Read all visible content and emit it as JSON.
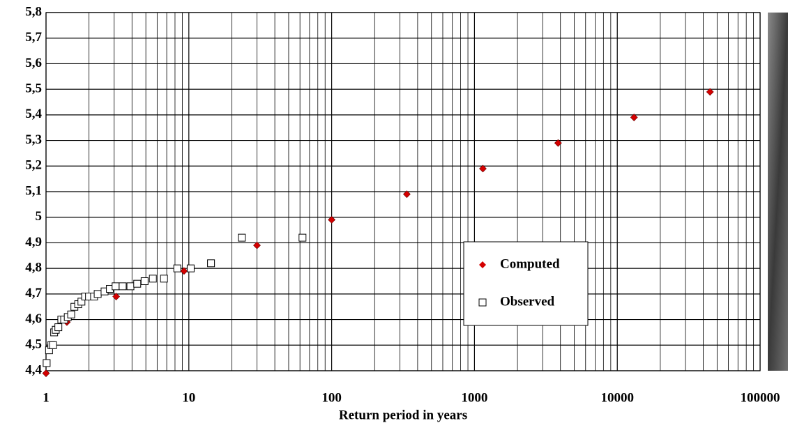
{
  "chart_data": {
    "type": "scatter",
    "x_label": "Return period in years",
    "xscale": "log",
    "xlim": [
      1,
      100000
    ],
    "xticks": [
      1,
      10,
      100,
      1000,
      10000,
      100000
    ],
    "ylim": [
      4.4,
      5.8
    ],
    "yticks": [
      {
        "value": 4.4,
        "label": "4,4"
      },
      {
        "value": 4.5,
        "label": "4,5"
      },
      {
        "value": 4.6,
        "label": "4,6"
      },
      {
        "value": 4.7,
        "label": "4,7"
      },
      {
        "value": 4.8,
        "label": "4,8"
      },
      {
        "value": 4.9,
        "label": "4,9"
      },
      {
        "value": 5,
        "label": "5"
      },
      {
        "value": 5.1,
        "label": "5,1"
      },
      {
        "value": 5.2,
        "label": "5,2"
      },
      {
        "value": 5.3,
        "label": "5,3"
      },
      {
        "value": 5.4,
        "label": "5,4"
      },
      {
        "value": 5.5,
        "label": "5,5"
      },
      {
        "value": 5.6,
        "label": "5,6"
      },
      {
        "value": 5.7,
        "label": "5,7"
      },
      {
        "value": 5.8,
        "label": "5,8"
      }
    ],
    "grid": true,
    "legend": "center-right",
    "series": [
      {
        "name": "Computed",
        "color": "#d40000",
        "marker": "diamond",
        "x": [
          1,
          1.4,
          3.1,
          9.25,
          30,
          100,
          336,
          1145,
          3850,
          13100,
          44600
        ],
        "values": [
          4.39,
          4.59,
          4.69,
          4.79,
          4.89,
          4.99,
          5.09,
          5.19,
          5.29,
          5.39,
          5.49
        ]
      },
      {
        "name": "Observed",
        "color": "#000000",
        "marker": "square",
        "x": [
          1.01,
          1.05,
          1.09,
          1.12,
          1.14,
          1.17,
          1.22,
          1.28,
          1.34,
          1.42,
          1.5,
          1.58,
          1.68,
          1.77,
          1.88,
          2.0,
          2.17,
          2.3,
          2.57,
          2.8,
          3.07,
          3.44,
          3.9,
          4.35,
          4.9,
          5.6,
          6.7,
          8.3,
          10.3,
          14.3,
          23.5,
          62.5
        ],
        "values": [
          4.43,
          4.48,
          4.5,
          4.5,
          4.55,
          4.56,
          4.57,
          4.6,
          4.6,
          4.61,
          4.62,
          4.65,
          4.66,
          4.67,
          4.69,
          4.69,
          4.69,
          4.7,
          4.71,
          4.72,
          4.73,
          4.73,
          4.73,
          4.74,
          4.75,
          4.76,
          4.76,
          4.8,
          4.8,
          4.82,
          4.92,
          4.92
        ]
      }
    ]
  }
}
